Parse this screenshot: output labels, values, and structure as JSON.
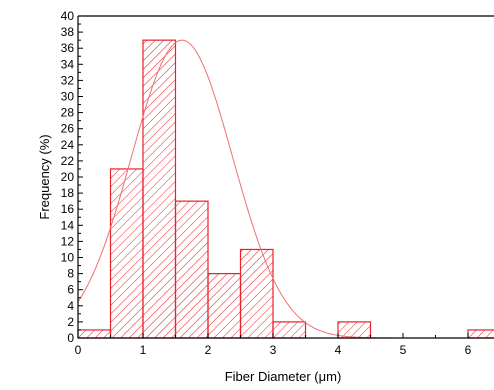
{
  "chart_data": {
    "type": "bar",
    "subtype": "histogram",
    "xlabel": "Fiber Diameter (μm)",
    "ylabel": "Frequency (%)",
    "xlim": [
      0,
      6.4
    ],
    "ylim": [
      0,
      40
    ],
    "x_ticks": [
      "0",
      "1",
      "2",
      "3",
      "4",
      "5",
      "6"
    ],
    "y_ticks": [
      "0",
      "2",
      "4",
      "6",
      "8",
      "10",
      "12",
      "14",
      "16",
      "18",
      "20",
      "22",
      "24",
      "26",
      "28",
      "30",
      "32",
      "34",
      "36",
      "38",
      "40"
    ],
    "bin_width": 0.5,
    "bins": [
      {
        "start": 0.0,
        "end": 0.5,
        "value": 1
      },
      {
        "start": 0.5,
        "end": 1.0,
        "value": 21
      },
      {
        "start": 1.0,
        "end": 1.5,
        "value": 37
      },
      {
        "start": 1.5,
        "end": 2.0,
        "value": 17
      },
      {
        "start": 2.0,
        "end": 2.5,
        "value": 8
      },
      {
        "start": 2.5,
        "end": 3.0,
        "value": 11
      },
      {
        "start": 3.0,
        "end": 3.5,
        "value": 2
      },
      {
        "start": 3.5,
        "end": 4.0,
        "value": 0
      },
      {
        "start": 4.0,
        "end": 4.5,
        "value": 2
      },
      {
        "start": 4.5,
        "end": 5.0,
        "value": 0
      },
      {
        "start": 5.0,
        "end": 5.5,
        "value": 0
      },
      {
        "start": 5.5,
        "end": 6.0,
        "value": 0
      },
      {
        "start": 6.0,
        "end": 6.5,
        "value": 1
      }
    ],
    "fit_curve": {
      "type": "normal",
      "mean": 1.6,
      "std": 0.78,
      "peak": 37
    },
    "grid": false,
    "legend": "none",
    "colors": {
      "bar_stroke": "#e8212b",
      "hatch": "#e8212b",
      "curve": "#f07070",
      "axis": "#000000"
    }
  }
}
